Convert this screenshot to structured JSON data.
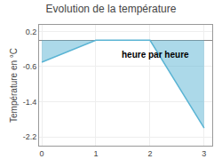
{
  "chart_data": {
    "type": "area",
    "title": "Evolution de la température",
    "y_label": "Température en °C",
    "annotations": [
      {
        "text": "heure par heure",
        "x": 1.45,
        "y": -0.48
      }
    ],
    "x": [
      0,
      1,
      2,
      3
    ],
    "series": [
      {
        "values": [
          -0.5,
          0.0,
          0.0,
          -2.0
        ],
        "color": "#5ab4d4"
      }
    ],
    "xlim": [
      -0.05,
      3.15
    ],
    "ylim": [
      -2.4,
      0.35
    ],
    "xticks": [
      0,
      1,
      2,
      3
    ],
    "yticks": [
      0.2,
      -0.6,
      -1.4,
      -2.2
    ],
    "grid": true
  }
}
